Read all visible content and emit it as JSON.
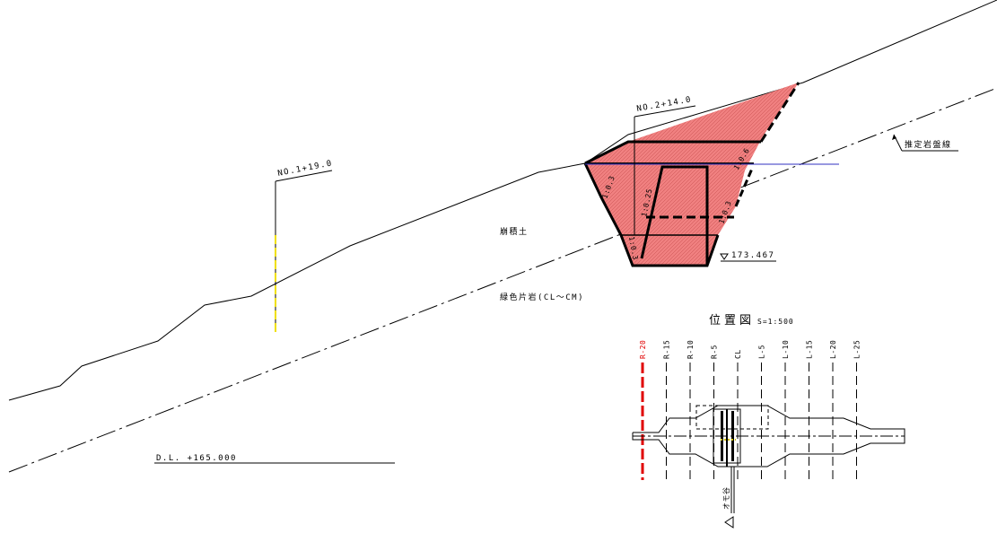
{
  "drawing": {
    "stations": {
      "left": "NO.1+19.0",
      "right": "NO.2+14.0"
    },
    "labels": {
      "rock_line": "推定岩盤線",
      "talus": "崩積土",
      "schist": "緑色片岩(CL〜CM)",
      "datum": "D.L. +165.000",
      "elevation": "173.467"
    },
    "slopes": {
      "s1": "1:0.6",
      "s2": "1:0.25",
      "s3": "1:0.3",
      "s4": "1:0.3",
      "s5": "1:0.3"
    },
    "hatch_color": "#f08080"
  },
  "location_map": {
    "title": "位置図",
    "scale": "S=1:500",
    "columns": [
      "R-20",
      "R-15",
      "R-10",
      "R-5",
      "CL",
      "L-5",
      "L-10",
      "L-15",
      "L-20",
      "L-25"
    ],
    "highlight_color": "#e00000",
    "stream_label": "オモ谷"
  }
}
